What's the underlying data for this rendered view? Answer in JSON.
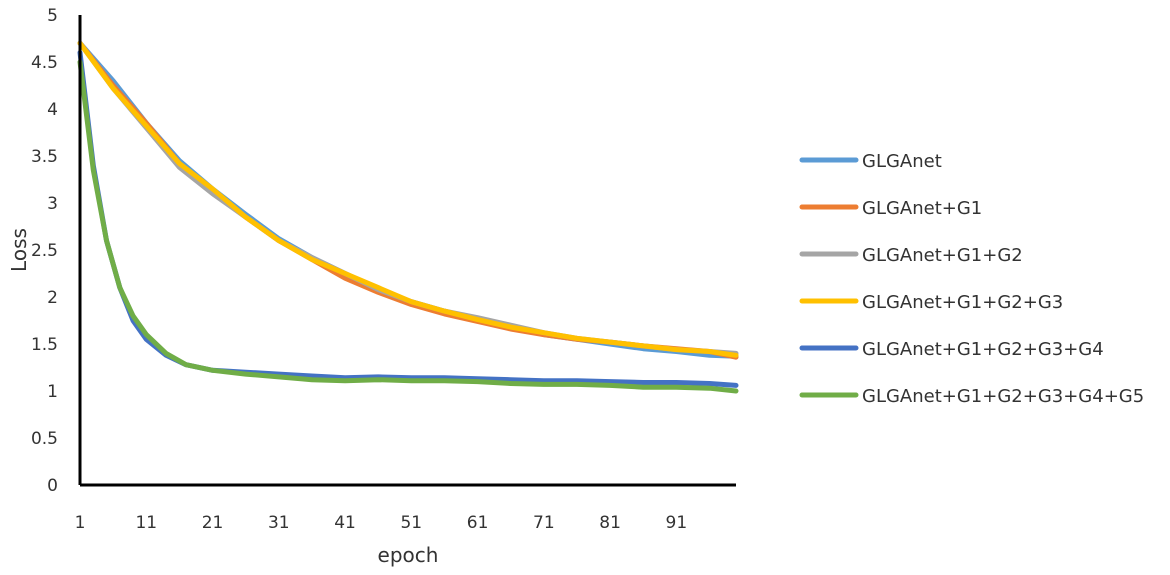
{
  "chart_data": {
    "type": "line",
    "xlabel": "epoch",
    "ylabel": "Loss",
    "xlim": [
      1,
      100
    ],
    "ylim": [
      0,
      5
    ],
    "x_ticks": [
      1,
      11,
      21,
      31,
      41,
      51,
      61,
      71,
      81,
      91
    ],
    "y_ticks": [
      "0",
      "0.5",
      "1",
      "1.5",
      "2",
      "2.5",
      "3",
      "3.5",
      "4",
      "4.5",
      "5"
    ],
    "grid": false,
    "legend_position": "right",
    "series": [
      {
        "name": "GLGAnet",
        "color": "#5b9bd5",
        "x": [
          1,
          6,
          11,
          16,
          21,
          26,
          31,
          36,
          41,
          46,
          51,
          56,
          61,
          66,
          71,
          76,
          81,
          86,
          91,
          96,
          100
        ],
        "values": [
          4.7,
          4.3,
          3.85,
          3.45,
          3.15,
          2.88,
          2.62,
          2.42,
          2.25,
          2.08,
          1.95,
          1.85,
          1.76,
          1.68,
          1.6,
          1.55,
          1.5,
          1.45,
          1.42,
          1.38,
          1.37
        ]
      },
      {
        "name": "GLGAnet+G1",
        "color": "#ed7d31",
        "x": [
          1,
          6,
          11,
          16,
          21,
          26,
          31,
          36,
          41,
          46,
          51,
          56,
          61,
          66,
          71,
          76,
          81,
          86,
          91,
          96,
          100
        ],
        "values": [
          4.7,
          4.25,
          3.85,
          3.42,
          3.12,
          2.85,
          2.6,
          2.4,
          2.2,
          2.05,
          1.92,
          1.82,
          1.74,
          1.66,
          1.6,
          1.55,
          1.52,
          1.48,
          1.45,
          1.42,
          1.36
        ]
      },
      {
        "name": "GLGAnet+G1+G2",
        "color": "#a5a5a5",
        "x": [
          1,
          6,
          11,
          16,
          21,
          26,
          31,
          36,
          41,
          46,
          51,
          56,
          61,
          66,
          71,
          76,
          81,
          86,
          91,
          96,
          100
        ],
        "values": [
          4.7,
          4.22,
          3.8,
          3.38,
          3.1,
          2.85,
          2.6,
          2.42,
          2.25,
          2.08,
          1.95,
          1.85,
          1.78,
          1.7,
          1.62,
          1.56,
          1.52,
          1.48,
          1.44,
          1.42,
          1.4
        ]
      },
      {
        "name": "GLGAnet+G1+G2+G3",
        "color": "#ffc000",
        "x": [
          1,
          6,
          11,
          16,
          21,
          26,
          31,
          36,
          41,
          46,
          51,
          56,
          61,
          66,
          71,
          76,
          81,
          86,
          91,
          96,
          100
        ],
        "values": [
          4.7,
          4.22,
          3.82,
          3.42,
          3.15,
          2.85,
          2.6,
          2.4,
          2.25,
          2.1,
          1.95,
          1.85,
          1.76,
          1.68,
          1.62,
          1.56,
          1.52,
          1.48,
          1.44,
          1.42,
          1.38
        ]
      },
      {
        "name": "GLGAnet+G1+G2+G3+G4",
        "color": "#4472c4",
        "x": [
          1,
          3,
          5,
          7,
          9,
          11,
          14,
          17,
          21,
          26,
          31,
          36,
          41,
          46,
          51,
          56,
          61,
          66,
          71,
          76,
          81,
          86,
          91,
          96,
          100
        ],
        "values": [
          4.6,
          3.4,
          2.6,
          2.1,
          1.75,
          1.55,
          1.38,
          1.28,
          1.22,
          1.2,
          1.18,
          1.16,
          1.14,
          1.15,
          1.14,
          1.14,
          1.13,
          1.12,
          1.11,
          1.11,
          1.1,
          1.09,
          1.09,
          1.08,
          1.06
        ]
      },
      {
        "name": "GLGAnet+G1+G2+G3+G4+G5",
        "color": "#70ad47",
        "x": [
          1,
          3,
          5,
          7,
          9,
          11,
          14,
          17,
          21,
          26,
          31,
          36,
          41,
          46,
          51,
          56,
          61,
          66,
          71,
          76,
          81,
          86,
          91,
          96,
          100
        ],
        "values": [
          4.5,
          3.35,
          2.6,
          2.1,
          1.8,
          1.6,
          1.4,
          1.28,
          1.22,
          1.18,
          1.15,
          1.12,
          1.11,
          1.12,
          1.11,
          1.11,
          1.1,
          1.08,
          1.07,
          1.07,
          1.06,
          1.04,
          1.04,
          1.03,
          1.0
        ]
      }
    ]
  }
}
